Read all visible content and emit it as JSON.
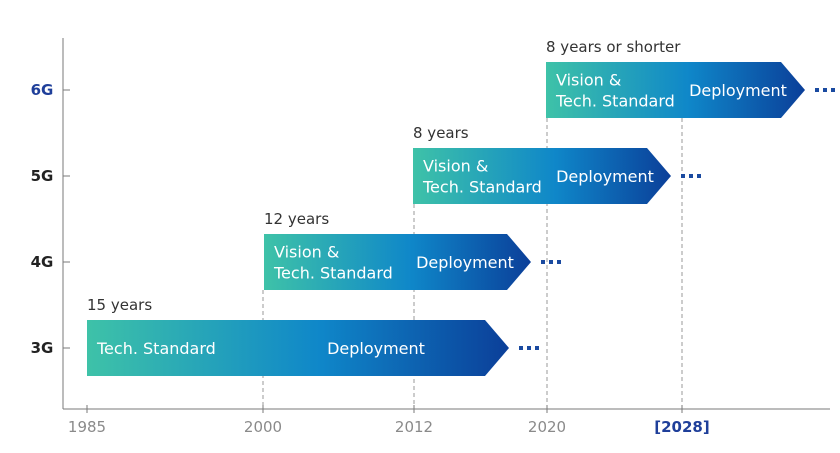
{
  "colors": {
    "gradient_start": "#3ec2a8",
    "gradient_mid": "#0f87c9",
    "gradient_end": "#0b3f99",
    "axis": "#7a7a7a",
    "guide": "#9a9a9a",
    "dots": "#1a4aa0",
    "highlight": "#1f3f9a"
  },
  "x_axis": {
    "ticks": [
      {
        "label": "1985",
        "highlight": false
      },
      {
        "label": "2000",
        "highlight": false
      },
      {
        "label": "2012",
        "highlight": false
      },
      {
        "label": "2020",
        "highlight": false
      },
      {
        "label": "[2028]",
        "highlight": true
      }
    ]
  },
  "generations": [
    {
      "label": "3G",
      "duration": "15 years",
      "standard_text": [
        "Tech. Standard"
      ],
      "deployment_text": "Deployment",
      "highlight": false
    },
    {
      "label": "4G",
      "duration": "12 years",
      "standard_text": [
        "Vision &",
        "Tech. Standard"
      ],
      "deployment_text": "Deployment",
      "highlight": false
    },
    {
      "label": "5G",
      "duration": "8 years",
      "standard_text": [
        "Vision &",
        "Tech. Standard"
      ],
      "deployment_text": "Deployment",
      "highlight": false
    },
    {
      "label": "6G",
      "duration": "8 years or shorter",
      "standard_text": [
        "Vision &",
        "Tech. Standard"
      ],
      "deployment_text": "Deployment",
      "highlight": true
    }
  ],
  "continuation_marker": "dots"
}
